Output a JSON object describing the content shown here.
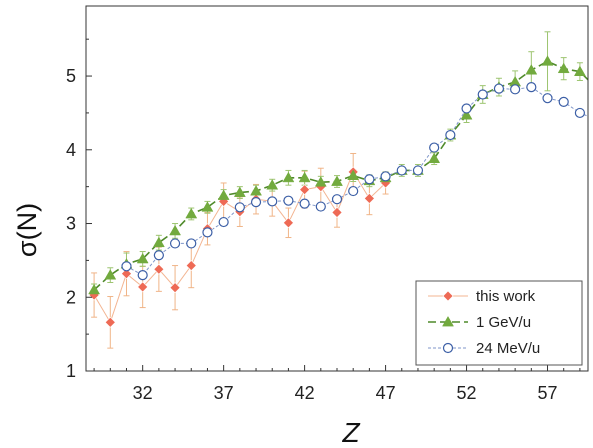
{
  "chart_data": {
    "type": "scatter",
    "xlabel": "Z",
    "ylabel": "σ(N)",
    "xlim": [
      28.5,
      59.5
    ],
    "ylim": [
      1,
      5.95
    ],
    "xticks": [
      32,
      37,
      42,
      47,
      52,
      57
    ],
    "yticks": [
      1,
      2,
      3,
      4,
      5
    ],
    "grid": false,
    "legend_position": "bottom-right",
    "series": [
      {
        "name": "this work",
        "marker": "diamond",
        "color": "#ee6a55",
        "line_color": "#f3b592",
        "line_style": "solid",
        "points": [
          {
            "x": 29,
            "y": 2.03,
            "err": 0.3
          },
          {
            "x": 30,
            "y": 1.66,
            "err": 0.35
          },
          {
            "x": 31,
            "y": 2.32,
            "err": 0.3
          },
          {
            "x": 32,
            "y": 2.14,
            "err": 0.28
          },
          {
            "x": 33,
            "y": 2.38,
            "err": 0.3
          },
          {
            "x": 34,
            "y": 2.13,
            "err": 0.3
          },
          {
            "x": 35,
            "y": 2.43,
            "err": 0.3
          },
          {
            "x": 36,
            "y": 2.93,
            "err": 0.22
          },
          {
            "x": 37,
            "y": 3.3,
            "err": 0.25
          },
          {
            "x": 38,
            "y": 3.16,
            "err": 0.2
          },
          {
            "x": 39,
            "y": 3.33,
            "err": 0.2
          },
          {
            "x": 40,
            "y": 3.3,
            "err": 0.2
          },
          {
            "x": 41,
            "y": 3.01,
            "err": 0.2
          },
          {
            "x": 42,
            "y": 3.46,
            "err": 0.25
          },
          {
            "x": 43,
            "y": 3.5,
            "err": 0.25
          },
          {
            "x": 44,
            "y": 3.15,
            "err": 0.2
          },
          {
            "x": 45,
            "y": 3.7,
            "err": 0.25
          },
          {
            "x": 46,
            "y": 3.34,
            "err": 0.22
          },
          {
            "x": 47,
            "y": 3.55,
            "err": 0.15
          }
        ]
      },
      {
        "name": "1 GeV/u",
        "marker": "triangle",
        "color": "#72aa3e",
        "line_color": "#4f8a2a",
        "line_style": "dashed",
        "points": [
          {
            "x": 29,
            "y": 2.1,
            "err": 0.08
          },
          {
            "x": 30,
            "y": 2.3,
            "err": 0.1
          },
          {
            "x": 31,
            "y": 2.45,
            "err": 0.15
          },
          {
            "x": 32,
            "y": 2.52,
            "err": 0.1
          },
          {
            "x": 33,
            "y": 2.74,
            "err": 0.1
          },
          {
            "x": 34,
            "y": 2.9,
            "err": 0.1
          },
          {
            "x": 35,
            "y": 3.13,
            "err": 0.08
          },
          {
            "x": 36,
            "y": 3.22,
            "err": 0.08
          },
          {
            "x": 37,
            "y": 3.38,
            "err": 0.08
          },
          {
            "x": 38,
            "y": 3.42,
            "err": 0.08
          },
          {
            "x": 39,
            "y": 3.44,
            "err": 0.08
          },
          {
            "x": 40,
            "y": 3.52,
            "err": 0.08
          },
          {
            "x": 41,
            "y": 3.62,
            "err": 0.1
          },
          {
            "x": 42,
            "y": 3.62,
            "err": 0.1
          },
          {
            "x": 43,
            "y": 3.56,
            "err": 0.08
          },
          {
            "x": 44,
            "y": 3.57,
            "err": 0.08
          },
          {
            "x": 45,
            "y": 3.65,
            "err": 0.08
          },
          {
            "x": 46,
            "y": 3.58,
            "err": 0.08
          },
          {
            "x": 47,
            "y": 3.62,
            "err": 0.08
          },
          {
            "x": 48,
            "y": 3.72,
            "err": 0.08
          },
          {
            "x": 49,
            "y": 3.72,
            "err": 0.08
          },
          {
            "x": 50,
            "y": 3.88,
            "err": 0.08
          },
          {
            "x": 51,
            "y": 4.2,
            "err": 0.08
          },
          {
            "x": 52,
            "y": 4.47,
            "err": 0.1
          },
          {
            "x": 53,
            "y": 4.75,
            "err": 0.12
          },
          {
            "x": 54,
            "y": 4.85,
            "err": 0.12
          },
          {
            "x": 55,
            "y": 4.92,
            "err": 0.15
          },
          {
            "x": 56,
            "y": 5.08,
            "err": 0.25
          },
          {
            "x": 57,
            "y": 5.2,
            "err": 0.4
          },
          {
            "x": 58,
            "y": 5.1,
            "err": 0.15
          },
          {
            "x": 59,
            "y": 5.06,
            "err": 0.12
          },
          {
            "x": 60,
            "y": 4.84,
            "err": 0.1
          }
        ]
      },
      {
        "name": "24 MeV/u",
        "marker": "circle",
        "color": "#3c5fa6",
        "line_color": "#7f96c9",
        "line_style": "dotted",
        "points": [
          {
            "x": 31,
            "y": 2.42
          },
          {
            "x": 32,
            "y": 2.3
          },
          {
            "x": 33,
            "y": 2.57
          },
          {
            "x": 34,
            "y": 2.73
          },
          {
            "x": 35,
            "y": 2.73
          },
          {
            "x": 36,
            "y": 2.88
          },
          {
            "x": 37,
            "y": 3.02
          },
          {
            "x": 38,
            "y": 3.22
          },
          {
            "x": 39,
            "y": 3.29
          },
          {
            "x": 40,
            "y": 3.3
          },
          {
            "x": 41,
            "y": 3.31
          },
          {
            "x": 42,
            "y": 3.27
          },
          {
            "x": 43,
            "y": 3.23
          },
          {
            "x": 44,
            "y": 3.33
          },
          {
            "x": 45,
            "y": 3.44
          },
          {
            "x": 46,
            "y": 3.6
          },
          {
            "x": 47,
            "y": 3.64
          },
          {
            "x": 48,
            "y": 3.72
          },
          {
            "x": 49,
            "y": 3.72
          },
          {
            "x": 50,
            "y": 4.03
          },
          {
            "x": 51,
            "y": 4.2
          },
          {
            "x": 52,
            "y": 4.56
          },
          {
            "x": 53,
            "y": 4.75
          },
          {
            "x": 54,
            "y": 4.83
          },
          {
            "x": 55,
            "y": 4.82
          },
          {
            "x": 56,
            "y": 4.85
          },
          {
            "x": 57,
            "y": 4.7
          },
          {
            "x": 58,
            "y": 4.65
          },
          {
            "x": 59,
            "y": 4.5
          },
          {
            "x": 60,
            "y": 4.41
          }
        ]
      }
    ]
  }
}
